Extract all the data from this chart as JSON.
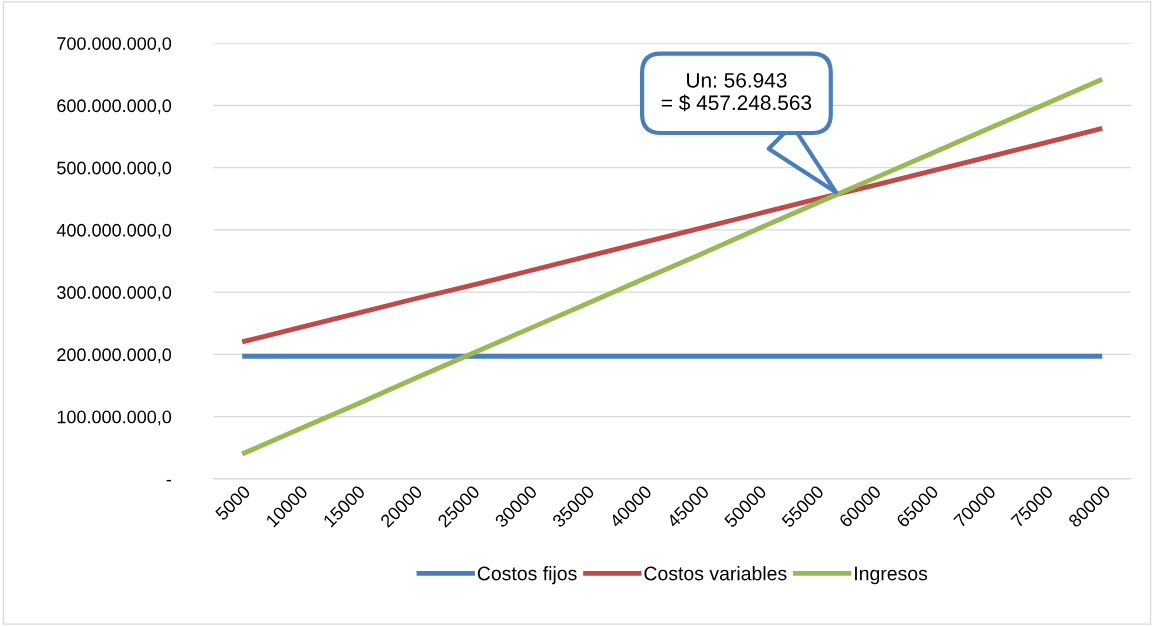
{
  "chart_data": {
    "type": "line",
    "categories": [
      "5000",
      "10000",
      "15000",
      "20000",
      "25000",
      "30000",
      "35000",
      "40000",
      "45000",
      "50000",
      "55000",
      "60000",
      "65000",
      "70000",
      "75000",
      "80000"
    ],
    "series": [
      {
        "name": "Costos fijos",
        "color": "#4a7ebb",
        "values": [
          197000000,
          197000000,
          197000000,
          197000000,
          197000000,
          197000000,
          197000000,
          197000000,
          197000000,
          197000000,
          197000000,
          197000000,
          197000000,
          197000000,
          197000000,
          197000000
        ]
      },
      {
        "name": "Costos variables",
        "color": "#be4b48",
        "values": [
          220000000,
          243000000,
          266000000,
          289000000,
          311000000,
          334000000,
          357000000,
          380000000,
          403000000,
          426000000,
          449000000,
          471000000,
          494000000,
          517000000,
          540000000,
          563000000
        ]
      },
      {
        "name": "Ingresos",
        "color": "#98b954",
        "values": [
          40000000,
          80000000,
          120000000,
          161000000,
          201000000,
          241000000,
          281000000,
          321000000,
          361000000,
          402000000,
          442000000,
          482000000,
          522000000,
          562000000,
          602000000,
          642000000
        ]
      }
    ],
    "ylim": [
      0,
      700000000
    ],
    "yticks": [
      {
        "value": 0,
        "label": "-"
      },
      {
        "value": 100000000,
        "label": "100.000.000,0"
      },
      {
        "value": 200000000,
        "label": "200.000.000,0"
      },
      {
        "value": 300000000,
        "label": "300.000.000,0"
      },
      {
        "value": 400000000,
        "label": "400.000.000,0"
      },
      {
        "value": 500000000,
        "label": "500.000.000,0"
      },
      {
        "value": 600000000,
        "label": "600.000.000,0"
      },
      {
        "value": 700000000,
        "label": "700.000.000,0"
      }
    ],
    "grid": "y",
    "legend": "bottom",
    "marker": "none",
    "line_style": "solid",
    "annotations": [
      "Un: 56.943\n= $ 457.248.563"
    ]
  }
}
